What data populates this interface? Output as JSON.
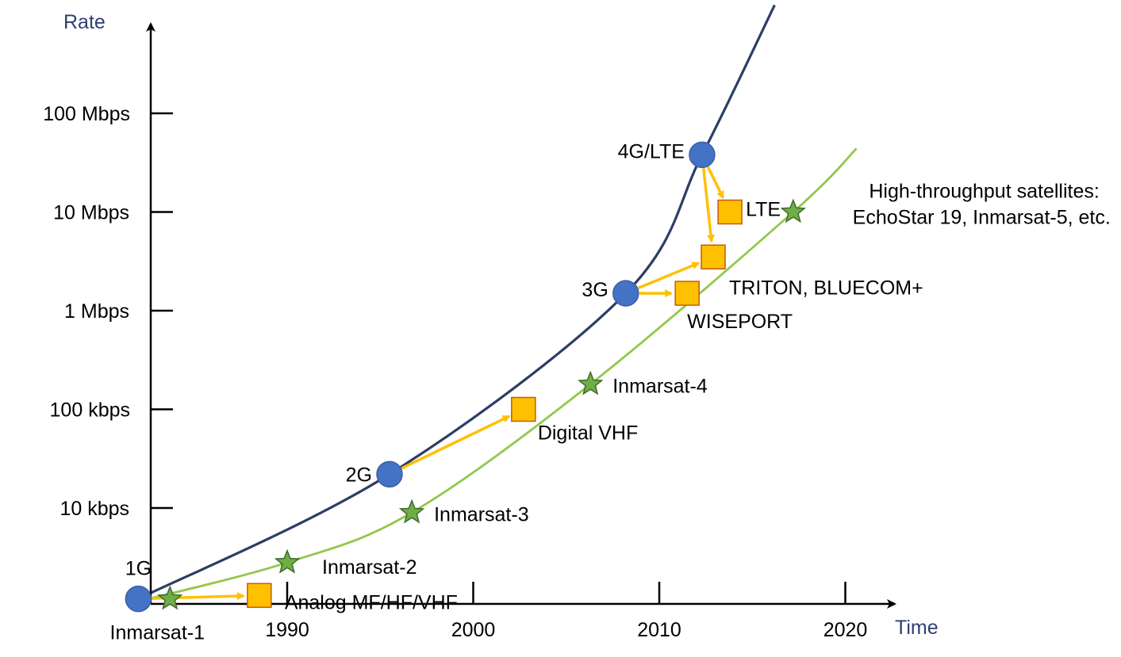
{
  "chart_data": {
    "type": "scatter",
    "title": "",
    "xlabel": "Time",
    "ylabel": "Rate",
    "x_scale": "linear",
    "y_scale": "log",
    "x_ticks": [
      "1990",
      "2000",
      "2010",
      "2020"
    ],
    "y_ticks": [
      "10 kbps",
      "100 kbps",
      "1 Mbps",
      "10 Mbps",
      "100 Mbps"
    ],
    "grid": false,
    "legend": "none",
    "colors": {
      "cellular_curve": "#2c3e66",
      "satellite_curve": "#92c84a",
      "cellular_marker": "#4472c4",
      "satellite_marker": "#70ad47",
      "maritime_marker": "#ffc000",
      "arrow": "#ffc000"
    },
    "series": [
      {
        "marker": "circle",
        "points": [
          {
            "x": 1982.0,
            "y_bps": 1200,
            "label": "1G"
          },
          {
            "x": 1995.5,
            "y_bps": 22000,
            "label": "2G"
          },
          {
            "x": 2008.2,
            "y_bps": 1500000,
            "label": "3G"
          },
          {
            "x": 2012.3,
            "y_bps": 38000000,
            "label": "4G/LTE"
          }
        ]
      },
      {
        "marker": "star",
        "points": [
          {
            "x": 1983.7,
            "y_bps": 1200,
            "label": "Inmarsat-1"
          },
          {
            "x": 1990.0,
            "y_bps": 2800,
            "label": "Inmarsat-2"
          },
          {
            "x": 1996.7,
            "y_bps": 9000,
            "label": "Inmarsat-3"
          },
          {
            "x": 2006.3,
            "y_bps": 180000,
            "label": "Inmarsat-4"
          },
          {
            "x": 2017.2,
            "y_bps": 10000000,
            "label": "High-throughput satellites:\nEchoStar 19, Inmarsat-5, etc."
          }
        ]
      },
      {
        "marker": "square",
        "points": [
          {
            "x": 1988.5,
            "y_bps": 1300,
            "label": "Analog MF/HF/VHF"
          },
          {
            "x": 2002.7,
            "y_bps": 100000,
            "label": "Digital VHF"
          },
          {
            "x": 2011.5,
            "y_bps": 1500000,
            "label": "WISEPORT"
          },
          {
            "x": 2012.9,
            "y_bps": 3500000,
            "label": "TRITON, BLUECOM+"
          },
          {
            "x": 2013.8,
            "y_bps": 10000000,
            "label": "LTE"
          }
        ]
      }
    ],
    "curves": [
      {
        "points": [
          [
            1982.0,
            1200
          ],
          [
            1995.5,
            22000
          ],
          [
            2008.2,
            1500000
          ],
          [
            2012.3,
            38000000
          ],
          [
            2016.2,
            1250000000
          ]
        ]
      },
      {
        "points": [
          [
            1982.0,
            1130
          ],
          [
            1990.0,
            2800
          ],
          [
            1996.7,
            9000
          ],
          [
            2006.3,
            180000
          ],
          [
            2017.2,
            10000000
          ],
          [
            2020.6,
            44000000
          ]
        ]
      }
    ],
    "arrows": [
      {
        "from": "1G",
        "to": "Analog MF/HF/VHF"
      },
      {
        "from": "2G",
        "to": "Digital VHF"
      },
      {
        "from": "3G",
        "to": "WISEPORT"
      },
      {
        "from": "3G",
        "to": "TRITON, BLUECOM+"
      },
      {
        "from": "4G/LTE",
        "to": "TRITON, BLUECOM+"
      },
      {
        "from": "4G/LTE",
        "to": "LTE"
      }
    ]
  }
}
